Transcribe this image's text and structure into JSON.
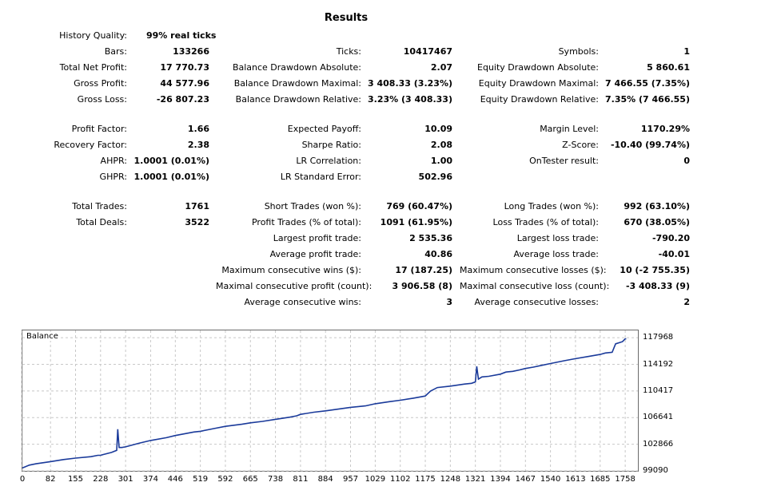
{
  "title": "Results",
  "history_quality": {
    "label": "History Quality:",
    "value": "99% real ticks"
  },
  "rows": [
    {
      "c1": {
        "label": "Bars:",
        "value": "133266"
      },
      "c2": {
        "label": "Ticks:",
        "value": "10417467"
      },
      "c3": {
        "label": "Symbols:",
        "value": "1"
      }
    },
    {
      "c1": {
        "label": "Total Net Profit:",
        "value": "17 770.73"
      },
      "c2": {
        "label": "Balance Drawdown Absolute:",
        "value": "2.07"
      },
      "c3": {
        "label": "Equity Drawdown Absolute:",
        "value": "5 860.61"
      }
    },
    {
      "c1": {
        "label": "Gross Profit:",
        "value": "44 577.96"
      },
      "c2": {
        "label": "Balance Drawdown Maximal:",
        "value": "3 408.33 (3.23%)"
      },
      "c3": {
        "label": "Equity Drawdown Maximal:",
        "value": "7 466.55 (7.35%)"
      }
    },
    {
      "c1": {
        "label": "Gross Loss:",
        "value": "-26 807.23"
      },
      "c2": {
        "label": "Balance Drawdown Relative:",
        "value": "3.23% (3 408.33)"
      },
      "c3": {
        "label": "Equity Drawdown Relative:",
        "value": "7.35% (7 466.55)"
      }
    },
    {
      "c1": {
        "label": "Profit Factor:",
        "value": "1.66"
      },
      "c2": {
        "label": "Expected Payoff:",
        "value": "10.09"
      },
      "c3": {
        "label": "Margin Level:",
        "value": "1170.29%"
      }
    },
    {
      "c1": {
        "label": "Recovery Factor:",
        "value": "2.38"
      },
      "c2": {
        "label": "Sharpe Ratio:",
        "value": "2.08"
      },
      "c3": {
        "label": "Z-Score:",
        "value": "-10.40 (99.74%)"
      }
    },
    {
      "c1": {
        "label": "AHPR:",
        "value": "1.0001 (0.01%)"
      },
      "c2": {
        "label": "LR Correlation:",
        "value": "1.00"
      },
      "c3": {
        "label": "OnTester result:",
        "value": "0"
      }
    },
    {
      "c1": {
        "label": "GHPR:",
        "value": "1.0001 (0.01%)"
      },
      "c2": {
        "label": "LR Standard Error:",
        "value": "502.96"
      },
      "c3": null
    },
    {
      "c1": {
        "label": "Total Trades:",
        "value": "1761"
      },
      "c2": {
        "label": "Short Trades (won %):",
        "value": "769 (60.47%)"
      },
      "c3": {
        "label": "Long Trades (won %):",
        "value": "992 (63.10%)"
      }
    },
    {
      "c1": {
        "label": "Total Deals:",
        "value": "3522"
      },
      "c2": {
        "label": "Profit Trades (% of total):",
        "value": "1091 (61.95%)"
      },
      "c3": {
        "label": "Loss Trades (% of total):",
        "value": "670 (38.05%)"
      }
    },
    {
      "c1": null,
      "c2": {
        "label": "Largest profit trade:",
        "value": "2 535.36"
      },
      "c3": {
        "label": "Largest loss trade:",
        "value": "-790.20"
      }
    },
    {
      "c1": null,
      "c2": {
        "label": "Average profit trade:",
        "value": "40.86"
      },
      "c3": {
        "label": "Average loss trade:",
        "value": "-40.01"
      }
    },
    {
      "c1": null,
      "c2": {
        "label": "Maximum consecutive wins ($):",
        "value": "17 (187.25)"
      },
      "c3": {
        "label": "Maximum consecutive losses ($):",
        "value": "10 (-2 755.35)"
      }
    },
    {
      "c1": null,
      "c2": {
        "label": "Maximal consecutive profit (count):",
        "value": "3 906.58 (8)"
      },
      "c3": {
        "label": "Maximal consecutive loss (count):",
        "value": "-3 408.33 (9)"
      }
    },
    {
      "c1": null,
      "c2": {
        "label": "Average consecutive wins:",
        "value": "3"
      },
      "c3": {
        "label": "Average consecutive losses:",
        "value": "2"
      }
    }
  ],
  "chart_data": {
    "type": "line",
    "series": [
      {
        "name": "Balance",
        "color": "#1a3a9a",
        "x": [
          0,
          20,
          40,
          82,
          120,
          155,
          200,
          220,
          228,
          235,
          260,
          275,
          278,
          282,
          290,
          301,
          340,
          374,
          420,
          446,
          500,
          519,
          560,
          592,
          640,
          665,
          700,
          738,
          780,
          800,
          811,
          850,
          884,
          930,
          957,
          1000,
          1029,
          1070,
          1102,
          1140,
          1175,
          1190,
          1210,
          1248,
          1290,
          1310,
          1321,
          1325,
          1330,
          1340,
          1360,
          1394,
          1410,
          1430,
          1450,
          1467,
          1490,
          1510,
          1540,
          1580,
          1613,
          1650,
          1685,
          1700,
          1720,
          1730,
          1750,
          1758,
          1761
        ],
        "y": [
          99500,
          99900,
          100100,
          100400,
          100700,
          100900,
          101100,
          101300,
          101300,
          101400,
          101700,
          102000,
          105000,
          102400,
          102400,
          102500,
          103000,
          103400,
          103800,
          104100,
          104600,
          104700,
          105100,
          105400,
          105700,
          105900,
          106100,
          106400,
          106700,
          106900,
          107100,
          107400,
          107600,
          107900,
          108100,
          108300,
          108600,
          108900,
          109100,
          109400,
          109700,
          110400,
          110900,
          111100,
          111400,
          111500,
          111700,
          113900,
          112100,
          112400,
          112500,
          112800,
          113100,
          113200,
          113400,
          113600,
          113800,
          114000,
          114300,
          114700,
          115000,
          115300,
          115600,
          115800,
          115900,
          117100,
          117400,
          117800,
          117800
        ]
      }
    ],
    "title": "Balance",
    "ylim": [
      99090,
      119000
    ],
    "xlim": [
      0,
      1795
    ],
    "y_ticks": [
      "117968",
      "114192",
      "110417",
      "106641",
      "102866",
      "99090"
    ],
    "y_tick_values": [
      117968,
      114192,
      110417,
      106641,
      102866,
      99090
    ],
    "x_ticks": [
      "0",
      "82",
      "155",
      "228",
      "301",
      "374",
      "446",
      "519",
      "592",
      "665",
      "738",
      "811",
      "884",
      "957",
      "1029",
      "1102",
      "1175",
      "1248",
      "1321",
      "1394",
      "1467",
      "1540",
      "1613",
      "1685",
      "1758"
    ],
    "grid": true
  }
}
